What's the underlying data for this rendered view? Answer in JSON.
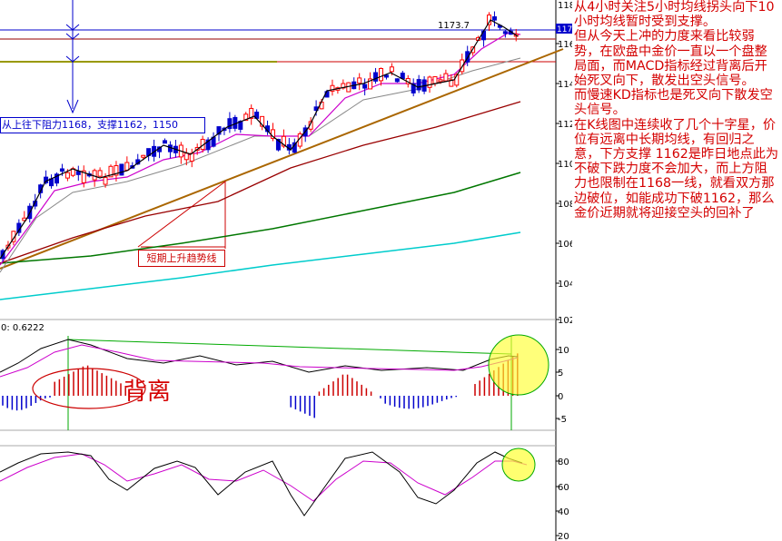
{
  "commentary": {
    "p1": "从4小时关注5小时均线拐头向下10小时均线暂时受到支撑。",
    "p2": "但从今天上冲的力度来看比较弱势，在欧盘中金价一直以一个盘整局面，而MACD指标经过背离后开始死叉向下，散发出空头信号。",
    "p3": "而慢速KD指标也是死叉向下散发空头信号。",
    "p4": "在K线图中连续收了几个十字星，价位有远离中长期均线，有回归之意，下方支撑 1162是昨日地点此为不破下跌力度不会加大，而上方阻力也限制在1168一线，就看双方那边破位，如能成功下破1162，那么金价近期就将迎接空头的回补了"
  },
  "chart_data": [
    {
      "type": "line",
      "panel": "price",
      "ylim": [
        1020,
        1180
      ],
      "yticks": [
        "116",
        "114",
        "112",
        "110",
        "108",
        "106",
        "104",
        "102"
      ],
      "ytick_top": "118",
      "price_tag": "117",
      "high_label": "1173.7",
      "annotation_box": "从上往下阻力1168，支撑1162，1150",
      "annotation_trend": "短期上升趋势线",
      "colors": {
        "up": "#ff0000",
        "down": "#0000cc",
        "ma5": "#000000",
        "ma10": "#cc00cc",
        "ma20": "#888888",
        "ma60": "#990000",
        "ma120": "#007700",
        "ma250": "#00cccc",
        "trend": "#aa6600"
      }
    },
    {
      "type": "bar",
      "panel": "macd",
      "header": "0: 0.6222",
      "yticks": [
        "10",
        "5",
        "0",
        "-5"
      ],
      "annotation": "背离"
    },
    {
      "type": "line",
      "panel": "kd",
      "yticks": [
        "80",
        "60",
        "40",
        "20"
      ]
    }
  ]
}
